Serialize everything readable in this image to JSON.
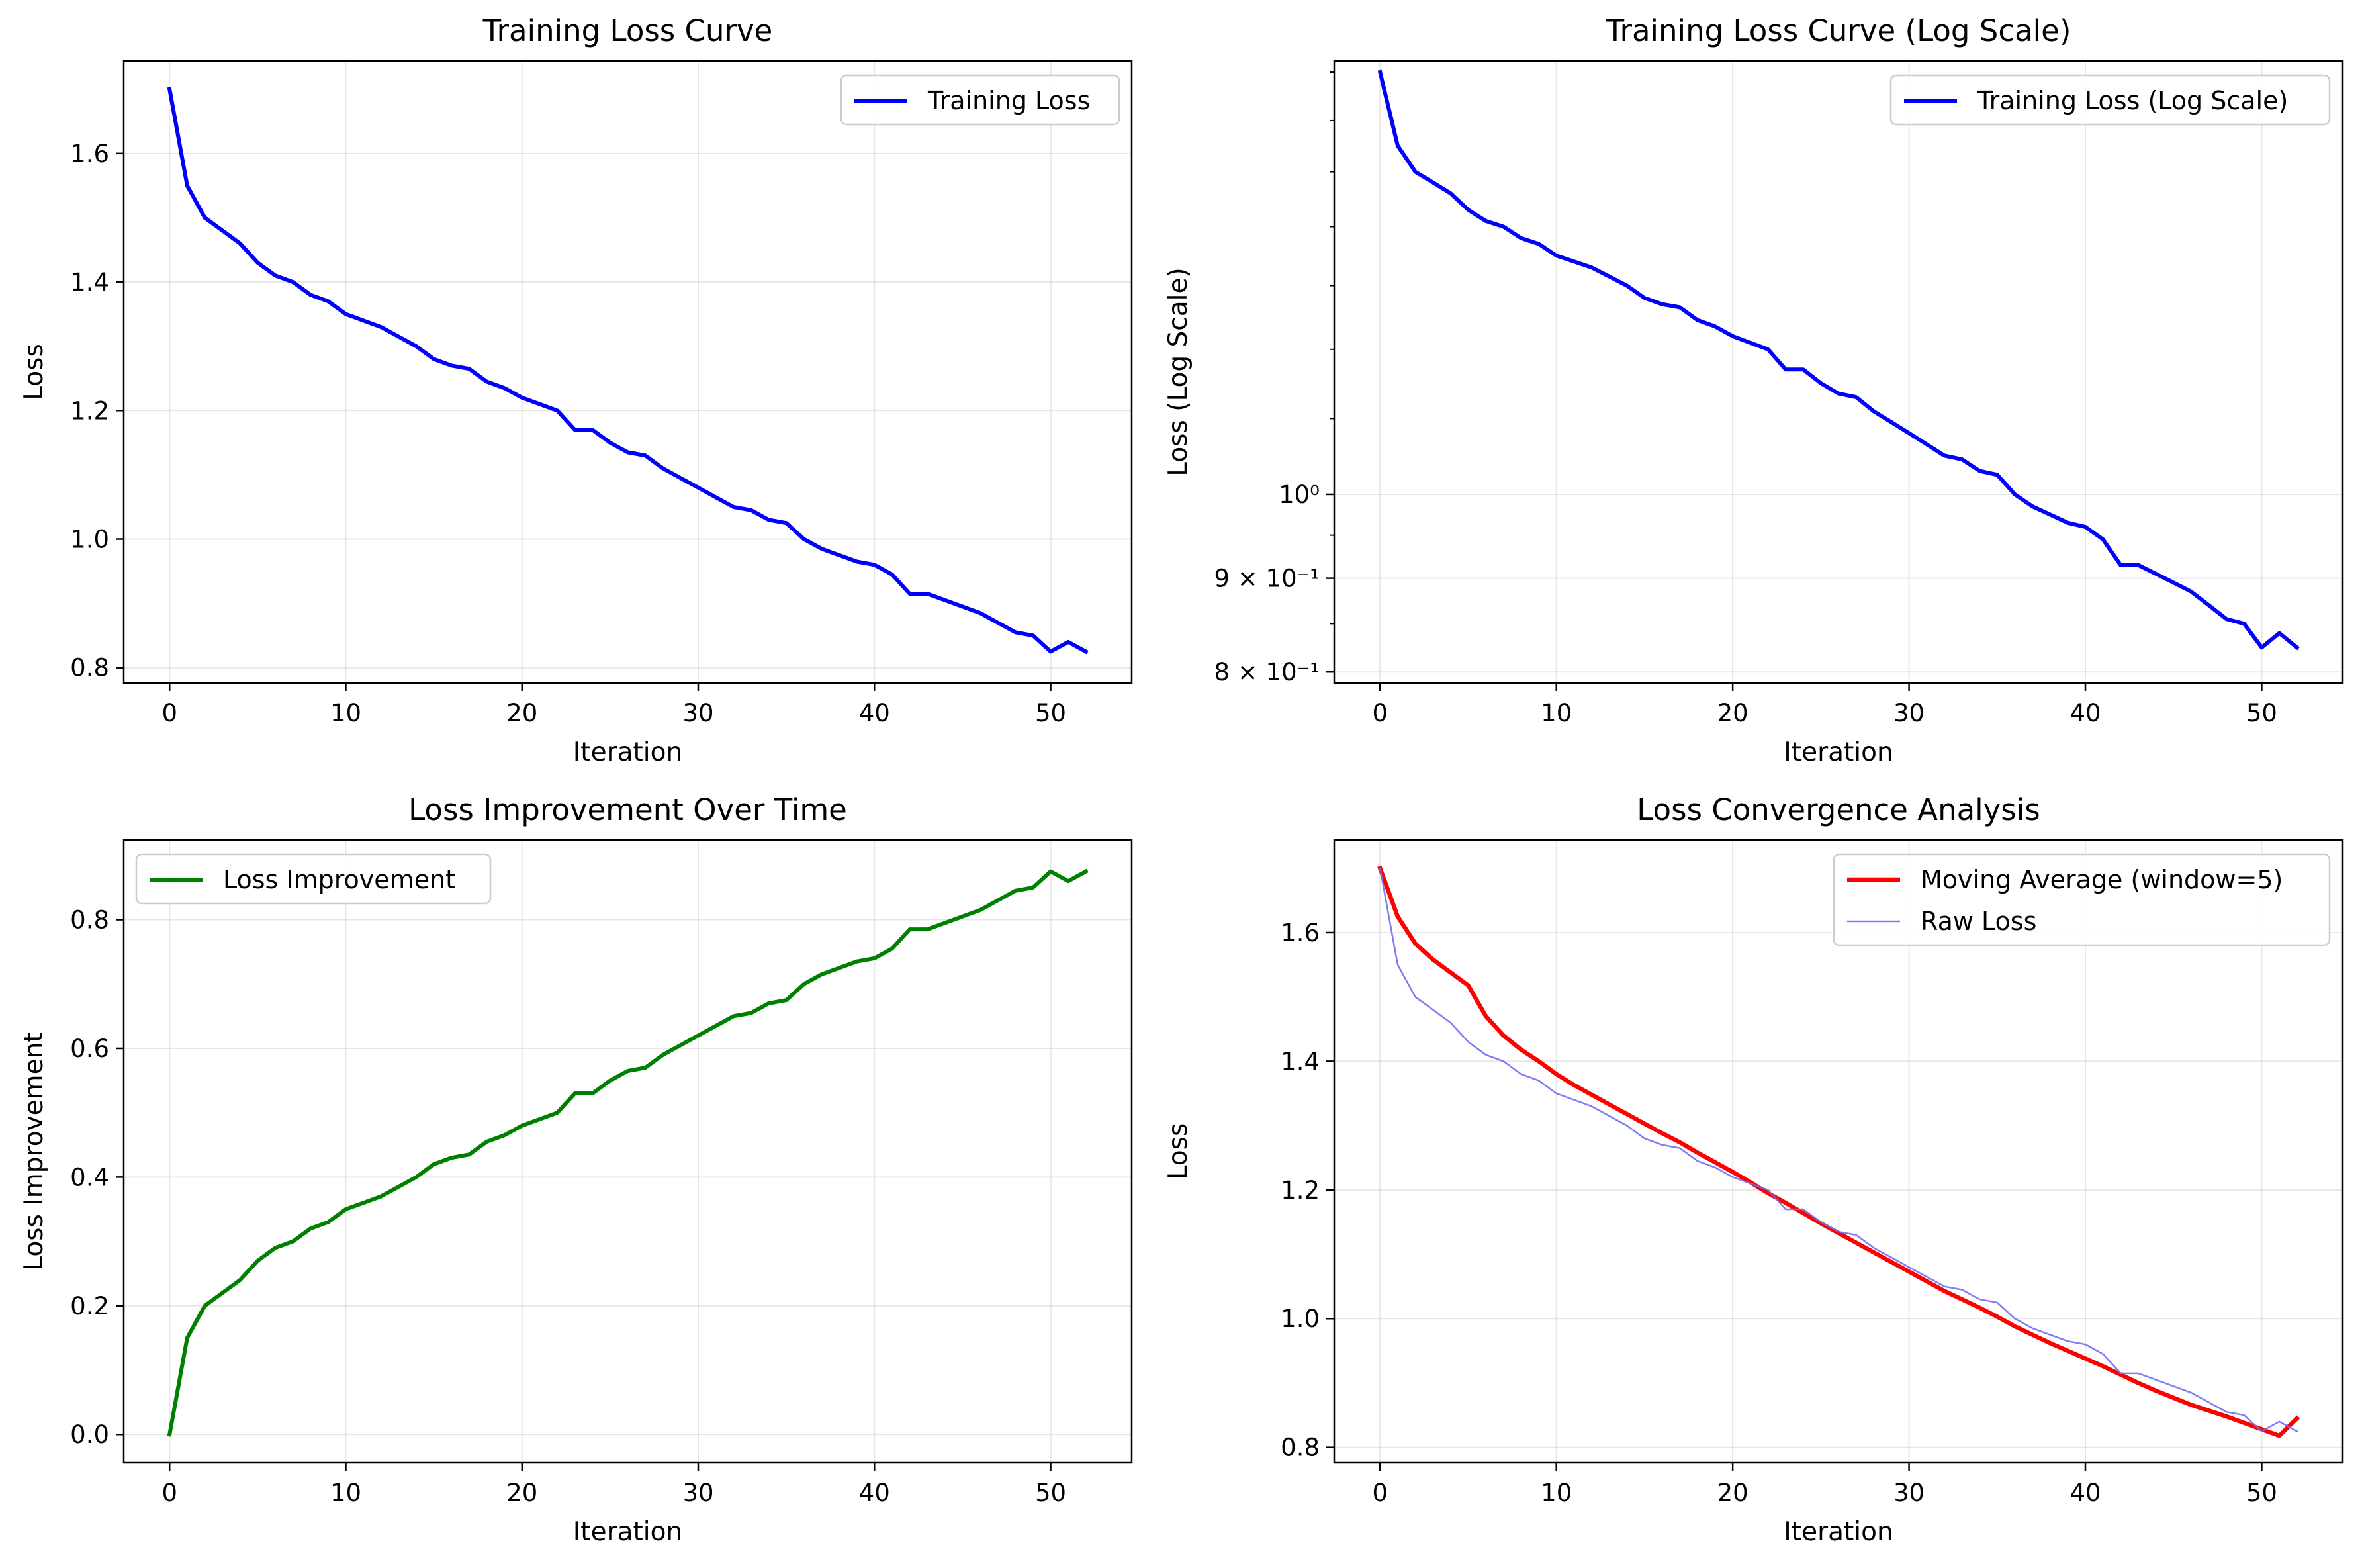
{
  "chart_data": [
    {
      "type": "line",
      "title": "Training Loss Curve",
      "xlabel": "Iteration",
      "ylabel": "Loss",
      "xlim": [
        -2.6,
        54.6
      ],
      "ylim": [
        0.776,
        1.744
      ],
      "xticks": [
        0,
        10,
        20,
        30,
        40,
        50
      ],
      "xtick_labels": [
        "0",
        "10",
        "20",
        "30",
        "40",
        "50"
      ],
      "yticks": [
        0.8,
        1.0,
        1.2,
        1.4,
        1.6
      ],
      "ytick_labels": [
        "0.8",
        "1.0",
        "1.2",
        "1.4",
        "1.6"
      ],
      "grid": true,
      "legend": {
        "position": "upper right",
        "entries": [
          "Training Loss"
        ]
      },
      "x": [
        0,
        1,
        2,
        3,
        4,
        5,
        6,
        7,
        8,
        9,
        10,
        11,
        12,
        13,
        14,
        15,
        16,
        17,
        18,
        19,
        20,
        21,
        22,
        23,
        24,
        25,
        26,
        27,
        28,
        29,
        30,
        31,
        32,
        33,
        34,
        35,
        36,
        37,
        38,
        39,
        40,
        41,
        42,
        43,
        44,
        45,
        46,
        47,
        48,
        49,
        50,
        51,
        52
      ],
      "series": [
        {
          "name": "Training Loss",
          "color": "#0000ff",
          "values": [
            1.7,
            1.55,
            1.5,
            1.48,
            1.46,
            1.43,
            1.41,
            1.4,
            1.38,
            1.37,
            1.35,
            1.34,
            1.33,
            1.315,
            1.3,
            1.28,
            1.27,
            1.265,
            1.245,
            1.235,
            1.22,
            1.21,
            1.2,
            1.17,
            1.17,
            1.15,
            1.135,
            1.13,
            1.11,
            1.095,
            1.08,
            1.065,
            1.05,
            1.045,
            1.03,
            1.025,
            1.0,
            0.985,
            0.975,
            0.965,
            0.96,
            0.945,
            0.915,
            0.915,
            0.905,
            0.895,
            0.885,
            0.87,
            0.855,
            0.85,
            0.825,
            0.84,
            0.825
          ]
        }
      ]
    },
    {
      "type": "line",
      "title": "Training Loss Curve (Log Scale)",
      "xlabel": "Iteration",
      "ylabel": "Loss (Log Scale)",
      "yscale": "log",
      "xlim": [
        -2.6,
        54.6
      ],
      "ylim": [
        0.7889,
        1.7243
      ],
      "xticks": [
        0,
        10,
        20,
        30,
        40,
        50
      ],
      "xtick_labels": [
        "0",
        "10",
        "20",
        "30",
        "40",
        "50"
      ],
      "yticks": [
        0.8,
        0.9,
        1.0
      ],
      "ytick_labels": [
        "8 × 10⁻¹",
        "9 × 10⁻¹",
        "10⁰"
      ],
      "grid": true,
      "legend": {
        "position": "upper right",
        "entries": [
          "Training Loss (Log Scale)"
        ]
      },
      "x": [
        0,
        1,
        2,
        3,
        4,
        5,
        6,
        7,
        8,
        9,
        10,
        11,
        12,
        13,
        14,
        15,
        16,
        17,
        18,
        19,
        20,
        21,
        22,
        23,
        24,
        25,
        26,
        27,
        28,
        29,
        30,
        31,
        32,
        33,
        34,
        35,
        36,
        37,
        38,
        39,
        40,
        41,
        42,
        43,
        44,
        45,
        46,
        47,
        48,
        49,
        50,
        51,
        52
      ],
      "series": [
        {
          "name": "Training Loss (Log Scale)",
          "color": "#0000ff",
          "values": [
            1.7,
            1.55,
            1.5,
            1.48,
            1.46,
            1.43,
            1.41,
            1.4,
            1.38,
            1.37,
            1.35,
            1.34,
            1.33,
            1.315,
            1.3,
            1.28,
            1.27,
            1.265,
            1.245,
            1.235,
            1.22,
            1.21,
            1.2,
            1.17,
            1.17,
            1.15,
            1.135,
            1.13,
            1.11,
            1.095,
            1.08,
            1.065,
            1.05,
            1.045,
            1.03,
            1.025,
            1.0,
            0.985,
            0.975,
            0.965,
            0.96,
            0.945,
            0.915,
            0.915,
            0.905,
            0.895,
            0.885,
            0.87,
            0.855,
            0.85,
            0.825,
            0.84,
            0.825
          ]
        }
      ]
    },
    {
      "type": "line",
      "title": "Loss Improvement Over Time",
      "xlabel": "Iteration",
      "ylabel": "Loss Improvement",
      "xlim": [
        -2.6,
        54.6
      ],
      "ylim": [
        -0.044,
        0.924
      ],
      "xticks": [
        0,
        10,
        20,
        30,
        40,
        50
      ],
      "xtick_labels": [
        "0",
        "10",
        "20",
        "30",
        "40",
        "50"
      ],
      "yticks": [
        0.0,
        0.2,
        0.4,
        0.6,
        0.8
      ],
      "ytick_labels": [
        "0.0",
        "0.2",
        "0.4",
        "0.6",
        "0.8"
      ],
      "grid": true,
      "legend": {
        "position": "upper left",
        "entries": [
          "Loss Improvement"
        ]
      },
      "x": [
        0,
        1,
        2,
        3,
        4,
        5,
        6,
        7,
        8,
        9,
        10,
        11,
        12,
        13,
        14,
        15,
        16,
        17,
        18,
        19,
        20,
        21,
        22,
        23,
        24,
        25,
        26,
        27,
        28,
        29,
        30,
        31,
        32,
        33,
        34,
        35,
        36,
        37,
        38,
        39,
        40,
        41,
        42,
        43,
        44,
        45,
        46,
        47,
        48,
        49,
        50,
        51,
        52
      ],
      "series": [
        {
          "name": "Loss Improvement",
          "color": "#008000",
          "values": [
            0.0,
            0.15,
            0.2,
            0.22,
            0.24,
            0.27,
            0.29,
            0.3,
            0.32,
            0.33,
            0.35,
            0.36,
            0.37,
            0.385,
            0.4,
            0.42,
            0.43,
            0.435,
            0.455,
            0.465,
            0.48,
            0.49,
            0.5,
            0.53,
            0.53,
            0.55,
            0.565,
            0.57,
            0.59,
            0.605,
            0.62,
            0.635,
            0.65,
            0.655,
            0.67,
            0.675,
            0.7,
            0.715,
            0.725,
            0.735,
            0.74,
            0.755,
            0.785,
            0.785,
            0.795,
            0.805,
            0.815,
            0.83,
            0.845,
            0.85,
            0.875,
            0.86,
            0.875
          ]
        }
      ]
    },
    {
      "type": "line",
      "title": "Loss Convergence Analysis",
      "xlabel": "Iteration",
      "ylabel": "Loss",
      "xlim": [
        -2.6,
        54.6
      ],
      "ylim": [
        0.776,
        1.744
      ],
      "xticks": [
        0,
        10,
        20,
        30,
        40,
        50
      ],
      "xtick_labels": [
        "0",
        "10",
        "20",
        "30",
        "40",
        "50"
      ],
      "yticks": [
        0.8,
        1.0,
        1.2,
        1.4,
        1.6
      ],
      "ytick_labels": [
        "0.8",
        "1.0",
        "1.2",
        "1.4",
        "1.6"
      ],
      "grid": true,
      "legend": {
        "position": "upper right",
        "entries": [
          "Moving Average (window=5)",
          "Raw Loss"
        ]
      },
      "x": [
        0,
        1,
        2,
        3,
        4,
        5,
        6,
        7,
        8,
        9,
        10,
        11,
        12,
        13,
        14,
        15,
        16,
        17,
        18,
        19,
        20,
        21,
        22,
        23,
        24,
        25,
        26,
        27,
        28,
        29,
        30,
        31,
        32,
        33,
        34,
        35,
        36,
        37,
        38,
        39,
        40,
        41,
        42,
        43,
        44,
        45,
        46,
        47,
        48,
        49,
        50,
        51,
        52
      ],
      "series": [
        {
          "name": "Moving Average (window=5)",
          "color": "#ff0000",
          "values": [
            1.7,
            1.625,
            1.583,
            1.558,
            1.538,
            1.518,
            1.47,
            1.44,
            1.418,
            1.4,
            1.38,
            1.363,
            1.348,
            1.333,
            1.318,
            1.303,
            1.288,
            1.274,
            1.258,
            1.243,
            1.228,
            1.212,
            1.195,
            1.18,
            1.164,
            1.148,
            1.133,
            1.118,
            1.103,
            1.088,
            1.073,
            1.058,
            1.043,
            1.03,
            1.017,
            1.003,
            0.988,
            0.975,
            0.962,
            0.95,
            0.938,
            0.926,
            0.913,
            0.9,
            0.888,
            0.877,
            0.866,
            0.857,
            0.848,
            0.838,
            0.828,
            0.818,
            0.845
          ]
        },
        {
          "name": "Raw Loss",
          "color": "#6f6ff5",
          "values": [
            1.7,
            1.55,
            1.5,
            1.48,
            1.46,
            1.43,
            1.41,
            1.4,
            1.38,
            1.37,
            1.35,
            1.34,
            1.33,
            1.315,
            1.3,
            1.28,
            1.27,
            1.265,
            1.245,
            1.235,
            1.22,
            1.21,
            1.2,
            1.17,
            1.17,
            1.15,
            1.135,
            1.13,
            1.11,
            1.095,
            1.08,
            1.065,
            1.05,
            1.045,
            1.03,
            1.025,
            1.0,
            0.985,
            0.975,
            0.965,
            0.96,
            0.945,
            0.915,
            0.915,
            0.905,
            0.895,
            0.885,
            0.87,
            0.855,
            0.85,
            0.825,
            0.84,
            0.825
          ]
        }
      ]
    }
  ]
}
